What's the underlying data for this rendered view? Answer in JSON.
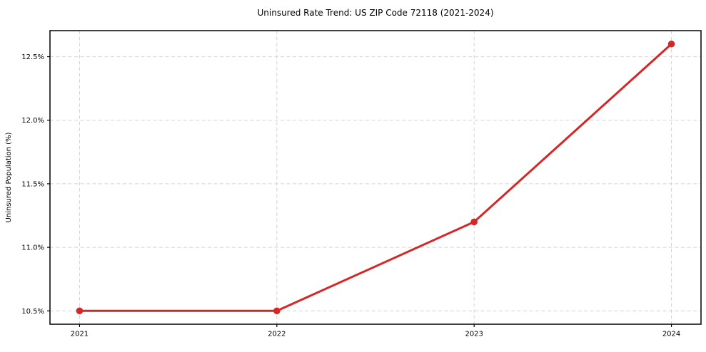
{
  "chart_data": {
    "type": "line",
    "title": "Uninsured Rate Trend: US ZIP Code 72118 (2021-2024)",
    "xlabel": "",
    "ylabel": "Uninsured Population (%)",
    "x": [
      2021,
      2022,
      2023,
      2024
    ],
    "x_tick_labels": [
      "2021",
      "2022",
      "2023",
      "2024"
    ],
    "series": [
      {
        "name": "Uninsured rate",
        "values": [
          10.5,
          10.5,
          11.2,
          12.6
        ]
      }
    ],
    "y_ticks": [
      10.5,
      11.0,
      11.5,
      12.0,
      12.5
    ],
    "y_tick_labels": [
      "10.5%",
      "11.0%",
      "11.5%",
      "12.0%",
      "12.5%"
    ],
    "xlim": [
      2020.85,
      2024.15
    ],
    "ylim": [
      10.395,
      12.705
    ],
    "grid": true,
    "grid_style": "dashed",
    "legend": "none",
    "colors": {
      "line": "#d62728",
      "marker": "#d62728",
      "grid": "#d4d4d4",
      "axis": "#000000",
      "text": "#000000",
      "background": "#ffffff"
    }
  }
}
